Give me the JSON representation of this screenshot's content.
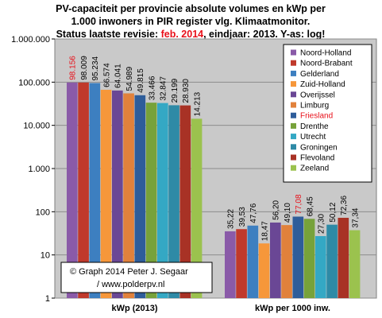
{
  "chart_data": {
    "type": "bar",
    "title_lines": [
      "PV-capaciteit per provincie absolute volumes en kWp per",
      "1.000 inwoners in PIR register vlg. Klimaatmonitor."
    ],
    "title_line3_prefix": "Status laatste revisie: ",
    "title_line3_highlight": "feb. 2014",
    "title_line3_suffix": ", eindjaar: 2013. Y-as: log!",
    "y_scale": "log",
    "ylim": [
      1,
      1000000
    ],
    "ytick_labels": [
      "1",
      "10",
      "100",
      "1.000",
      "10.000",
      "100.000",
      "1.000.000"
    ],
    "ytick_values": [
      1,
      10,
      100,
      1000,
      10000,
      100000,
      1000000
    ],
    "grid": "horizontal",
    "categories": [
      "kWp (2013)",
      "kWp per 1000 inw."
    ],
    "series": [
      {
        "name": "Noord-Holland",
        "color": "#8a5aa8",
        "values": [
          98156,
          35.22
        ],
        "labels": [
          "98.156",
          "35,22"
        ]
      },
      {
        "name": "Noord-Brabant",
        "color": "#c0392b",
        "values": [
          98009,
          39.53
        ],
        "labels": [
          "98.009",
          "39,53"
        ]
      },
      {
        "name": "Gelderland",
        "color": "#3d7fc0",
        "values": [
          95234,
          47.76
        ],
        "labels": [
          "95.234",
          "47,76"
        ]
      },
      {
        "name": "Zuid-Holland",
        "color": "#f6973a",
        "values": [
          66574,
          18.47
        ],
        "labels": [
          "66.574",
          "18,47"
        ]
      },
      {
        "name": "Overijssel",
        "color": "#6a4795",
        "values": [
          64041,
          56.2
        ],
        "labels": [
          "64.041",
          "56,20"
        ]
      },
      {
        "name": "Limburg",
        "color": "#e1813b",
        "values": [
          54989,
          49.1
        ],
        "labels": [
          "54.989",
          "49,10"
        ]
      },
      {
        "name": "Friesland",
        "color": "#2e5d9a",
        "values": [
          49815,
          77.08
        ],
        "labels": [
          "49.815",
          "77,08"
        ]
      },
      {
        "name": "Drenthe",
        "color": "#77a23a",
        "values": [
          33466,
          68.45
        ],
        "labels": [
          "33.466",
          "68,45"
        ]
      },
      {
        "name": "Utrecht",
        "color": "#34a8c4",
        "values": [
          32847,
          27.3
        ],
        "labels": [
          "32.847",
          "27,30"
        ]
      },
      {
        "name": "Groningen",
        "color": "#2e8aa6",
        "values": [
          29199,
          50.12
        ],
        "labels": [
          "29.199",
          "50,12"
        ]
      },
      {
        "name": "Flevoland",
        "color": "#a83225",
        "values": [
          28930,
          72.36
        ],
        "labels": [
          "28.930",
          "72,36"
        ]
      },
      {
        "name": "Zeeland",
        "color": "#9bc24e",
        "values": [
          14213,
          37.34
        ],
        "labels": [
          "14.213",
          "37,34"
        ]
      }
    ],
    "highlight_color": "#e8101a",
    "highlight_labels": [
      {
        "category": 0,
        "series": 0
      },
      {
        "category": 1,
        "series": 6
      }
    ],
    "legend": {
      "placement": "top-right",
      "highlighted_entry": "Friesland"
    },
    "copyright": {
      "line1": "© Graph 2014 Peter J. Segaar",
      "line2": "/ www.polderpv.nl"
    }
  }
}
